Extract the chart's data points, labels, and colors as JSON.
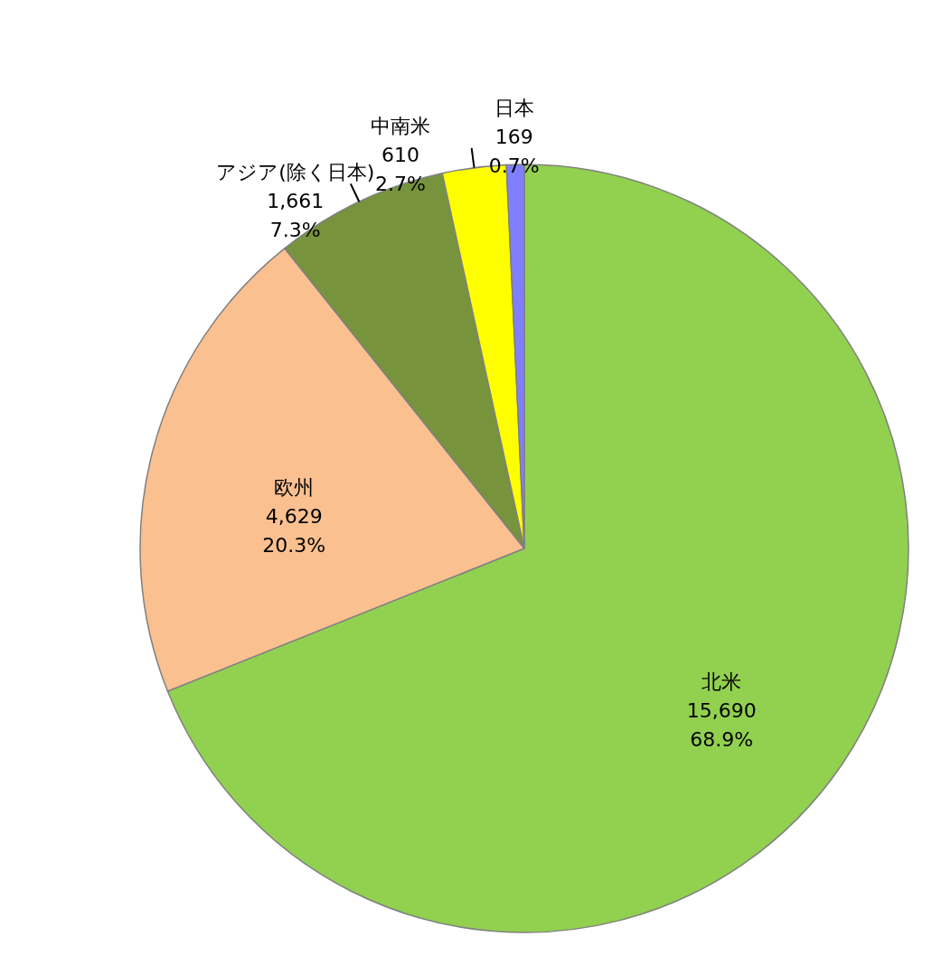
{
  "chart_data": {
    "type": "pie",
    "categories": [
      "北米",
      "欧州",
      "アジア(除く日本)",
      "中南米",
      "日本"
    ],
    "values": [
      15690,
      4629,
      1661,
      610,
      169
    ],
    "colors": [
      "#92d050",
      "#fac090",
      "#77933c",
      "#ffff00",
      "#8080ff"
    ],
    "value_labels": [
      "15,690\n68.9%",
      "4,629\n20.3%",
      "1,661\n7.3%",
      "610\n2.7%",
      "169\n0.7%"
    ]
  }
}
